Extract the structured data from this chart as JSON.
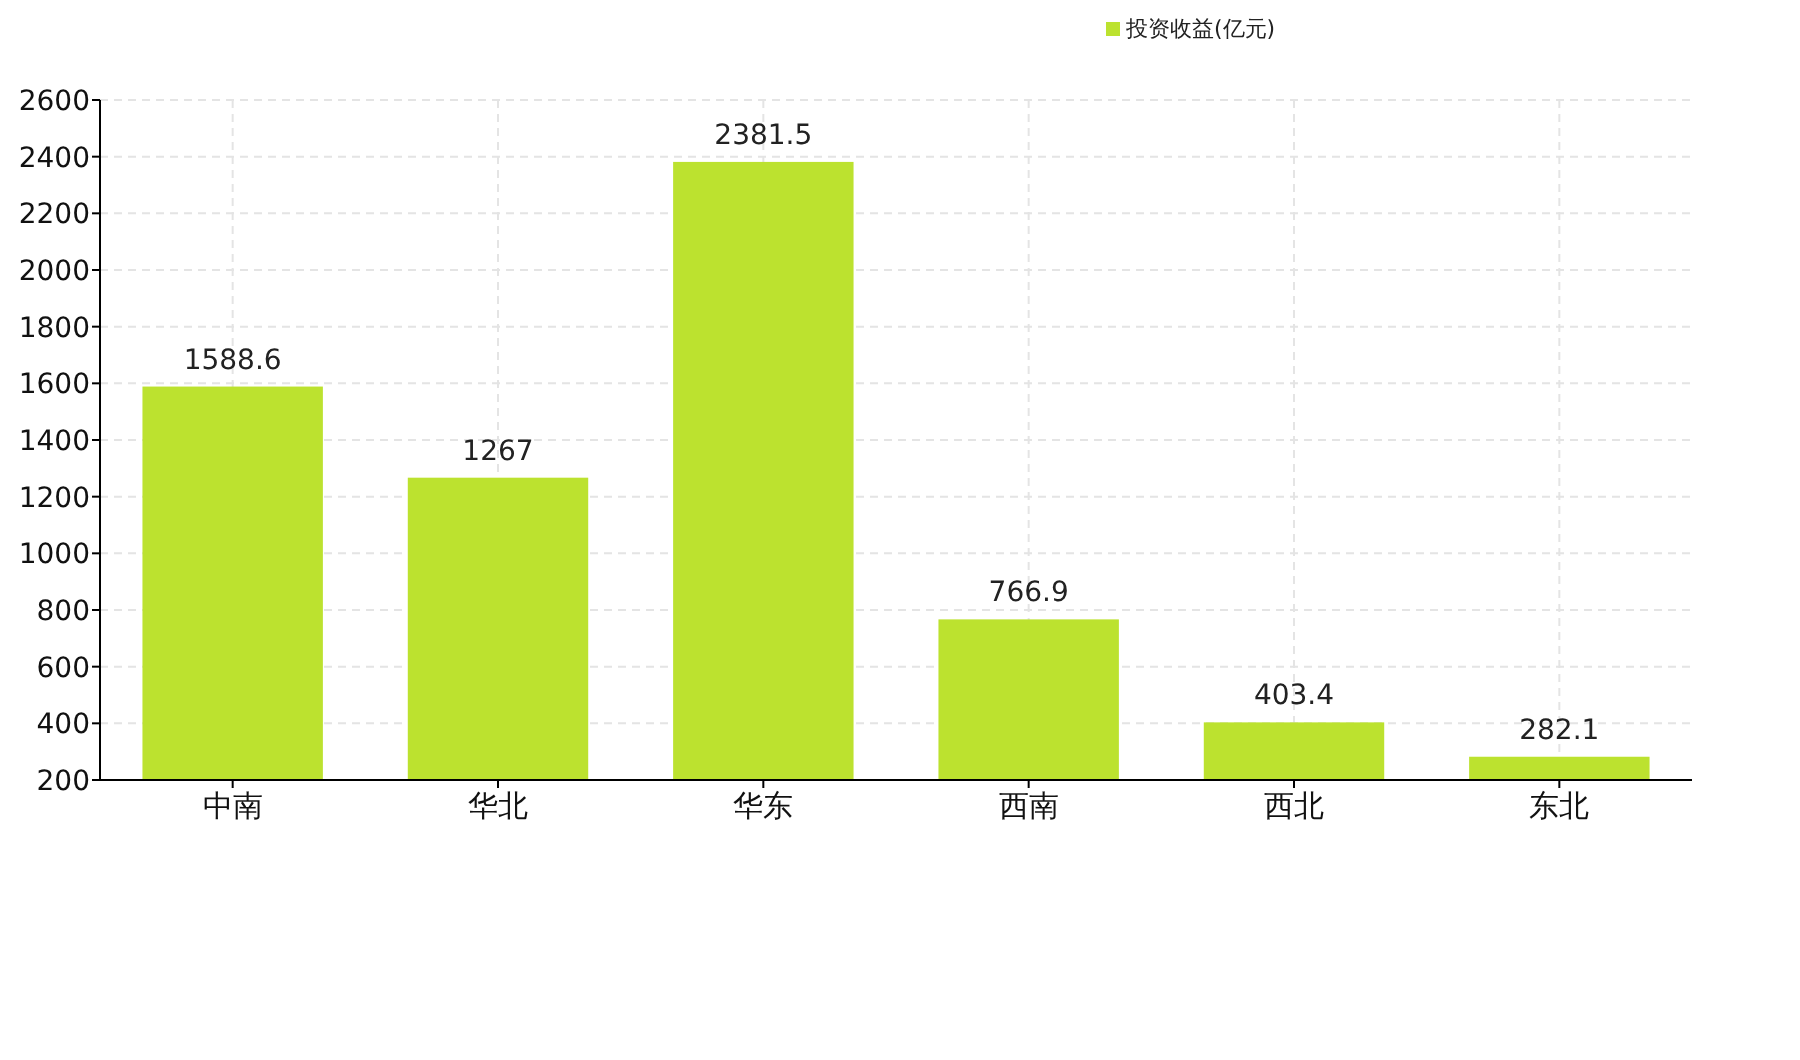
{
  "chart_data": {
    "type": "bar",
    "categories": [
      "中南",
      "华北",
      "华东",
      "西南",
      "西北",
      "东北"
    ],
    "series": [
      {
        "name": "投资收益(亿元)",
        "color": "#bce22f",
        "values": [
          1588.6,
          1267,
          2381.5,
          766.9,
          403.4,
          282.1
        ]
      }
    ],
    "ylim": [
      200,
      2600
    ],
    "yticks": [
      200,
      400,
      600,
      800,
      1000,
      1200,
      1400,
      1600,
      1800,
      2000,
      2200,
      2400,
      2600
    ],
    "grid": true,
    "legend": "top",
    "data_labels": true
  }
}
